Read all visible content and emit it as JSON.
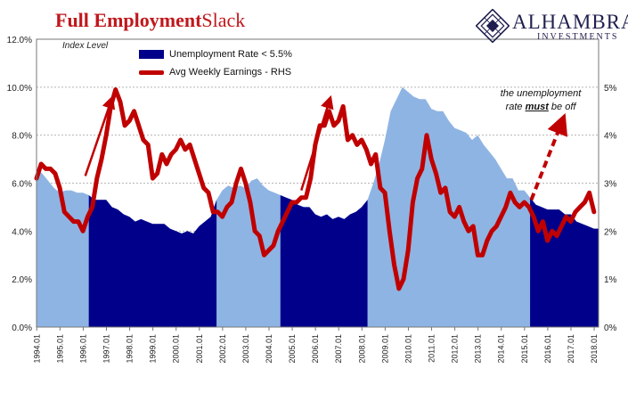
{
  "header": {
    "title_part1": "Full Employment",
    "title_part2": "Slack",
    "brand": "ALHAMBRA",
    "brand_sub": "INVESTMENTS",
    "index_label": "Index Level",
    "annotation_line1": "the unemployment",
    "annotation_line2_pre": "rate ",
    "annotation_line2_emph": "must",
    "annotation_line2_post": " be off"
  },
  "colors": {
    "title": "#c0171c",
    "unemployment_dark": "#00008b",
    "unemployment_light": "#8eb4e3",
    "earnings": "#c00000",
    "arrows": "#c00000"
  },
  "chart_data": {
    "type": "area",
    "x_tick_labels": [
      "1994.01",
      "1995.01",
      "1996.01",
      "1997.01",
      "1998.01",
      "1999.01",
      "2000.01",
      "2001.01",
      "2002.01",
      "2003.01",
      "2004.01",
      "2005.01",
      "2006.01",
      "2007.01",
      "2008.01",
      "2009.01",
      "2010.01",
      "2011.01",
      "2012.01",
      "2013.01",
      "2014.01",
      "2015.01",
      "2016.01",
      "2017.01",
      "2018.01"
    ],
    "x_range": [
      1994.0,
      2018.2
    ],
    "y_left_ticks": [
      "0.0%",
      "2.0%",
      "4.0%",
      "6.0%",
      "8.0%",
      "10.0%",
      "12.0%"
    ],
    "y_left_range": [
      0,
      12
    ],
    "y_right_ticks": [
      "0%",
      "1%",
      "2%",
      "3%",
      "4%",
      "5%"
    ],
    "y_right_range": [
      0,
      6
    ],
    "grid": "horizontal dashed",
    "legend": "top-left",
    "series": [
      {
        "name": "Unemployment Rate < 5.5%",
        "axis": "left",
        "unit": "%",
        "highlight_threshold": 5.5,
        "points": [
          [
            1994.0,
            6.6
          ],
          [
            1994.25,
            6.4
          ],
          [
            1994.5,
            6.1
          ],
          [
            1994.75,
            5.8
          ],
          [
            1995.0,
            5.6
          ],
          [
            1995.25,
            5.7
          ],
          [
            1995.5,
            5.7
          ],
          [
            1995.75,
            5.6
          ],
          [
            1996.0,
            5.6
          ],
          [
            1996.25,
            5.5
          ],
          [
            1996.5,
            5.3
          ],
          [
            1996.75,
            5.3
          ],
          [
            1997.0,
            5.3
          ],
          [
            1997.25,
            5.0
          ],
          [
            1997.5,
            4.9
          ],
          [
            1997.75,
            4.7
          ],
          [
            1998.0,
            4.6
          ],
          [
            1998.25,
            4.4
          ],
          [
            1998.5,
            4.5
          ],
          [
            1998.75,
            4.4
          ],
          [
            1999.0,
            4.3
          ],
          [
            1999.25,
            4.3
          ],
          [
            1999.5,
            4.3
          ],
          [
            1999.75,
            4.1
          ],
          [
            2000.0,
            4.0
          ],
          [
            2000.25,
            3.9
          ],
          [
            2000.5,
            4.0
          ],
          [
            2000.75,
            3.9
          ],
          [
            2001.0,
            4.2
          ],
          [
            2001.25,
            4.4
          ],
          [
            2001.5,
            4.6
          ],
          [
            2001.75,
            5.3
          ],
          [
            2002.0,
            5.7
          ],
          [
            2002.25,
            5.9
          ],
          [
            2002.5,
            5.8
          ],
          [
            2002.75,
            5.9
          ],
          [
            2003.0,
            5.8
          ],
          [
            2003.25,
            6.1
          ],
          [
            2003.5,
            6.2
          ],
          [
            2003.75,
            5.9
          ],
          [
            2004.0,
            5.7
          ],
          [
            2004.25,
            5.6
          ],
          [
            2004.5,
            5.5
          ],
          [
            2004.75,
            5.4
          ],
          [
            2005.0,
            5.3
          ],
          [
            2005.25,
            5.1
          ],
          [
            2005.5,
            5.0
          ],
          [
            2005.75,
            5.0
          ],
          [
            2006.0,
            4.7
          ],
          [
            2006.25,
            4.6
          ],
          [
            2006.5,
            4.7
          ],
          [
            2006.75,
            4.5
          ],
          [
            2007.0,
            4.6
          ],
          [
            2007.25,
            4.5
          ],
          [
            2007.5,
            4.7
          ],
          [
            2007.75,
            4.8
          ],
          [
            2008.0,
            5.0
          ],
          [
            2008.25,
            5.3
          ],
          [
            2008.5,
            6.0
          ],
          [
            2008.75,
            6.8
          ],
          [
            2009.0,
            7.8
          ],
          [
            2009.25,
            9.0
          ],
          [
            2009.5,
            9.5
          ],
          [
            2009.75,
            10.0
          ],
          [
            2010.0,
            9.8
          ],
          [
            2010.25,
            9.6
          ],
          [
            2010.5,
            9.5
          ],
          [
            2010.75,
            9.5
          ],
          [
            2011.0,
            9.1
          ],
          [
            2011.25,
            9.0
          ],
          [
            2011.5,
            9.0
          ],
          [
            2011.75,
            8.6
          ],
          [
            2012.0,
            8.3
          ],
          [
            2012.25,
            8.2
          ],
          [
            2012.5,
            8.1
          ],
          [
            2012.75,
            7.8
          ],
          [
            2013.0,
            8.0
          ],
          [
            2013.25,
            7.6
          ],
          [
            2013.5,
            7.3
          ],
          [
            2013.75,
            7.0
          ],
          [
            2014.0,
            6.6
          ],
          [
            2014.25,
            6.2
          ],
          [
            2014.5,
            6.2
          ],
          [
            2014.75,
            5.7
          ],
          [
            2015.0,
            5.7
          ],
          [
            2015.25,
            5.4
          ],
          [
            2015.5,
            5.1
          ],
          [
            2015.75,
            5.0
          ],
          [
            2016.0,
            4.9
          ],
          [
            2016.25,
            4.9
          ],
          [
            2016.5,
            4.9
          ],
          [
            2016.75,
            4.7
          ],
          [
            2017.0,
            4.7
          ],
          [
            2017.25,
            4.4
          ],
          [
            2017.5,
            4.3
          ],
          [
            2017.75,
            4.2
          ],
          [
            2018.0,
            4.1
          ],
          [
            2018.2,
            4.1
          ]
        ]
      },
      {
        "name": "Avg Weekly Earnings - RHS",
        "axis": "right",
        "unit": "%",
        "points": [
          [
            1994.0,
            3.1
          ],
          [
            1994.2,
            3.4
          ],
          [
            1994.4,
            3.3
          ],
          [
            1994.6,
            3.3
          ],
          [
            1994.8,
            3.2
          ],
          [
            1995.0,
            2.9
          ],
          [
            1995.2,
            2.4
          ],
          [
            1995.4,
            2.3
          ],
          [
            1995.6,
            2.2
          ],
          [
            1995.8,
            2.2
          ],
          [
            1996.0,
            2.0
          ],
          [
            1996.2,
            2.3
          ],
          [
            1996.4,
            2.5
          ],
          [
            1996.6,
            3.1
          ],
          [
            1996.8,
            3.5
          ],
          [
            1997.0,
            4.0
          ],
          [
            1997.2,
            4.6
          ],
          [
            1997.4,
            4.95
          ],
          [
            1997.6,
            4.7
          ],
          [
            1997.8,
            4.2
          ],
          [
            1998.0,
            4.3
          ],
          [
            1998.2,
            4.5
          ],
          [
            1998.4,
            4.2
          ],
          [
            1998.6,
            3.9
          ],
          [
            1998.8,
            3.8
          ],
          [
            1999.0,
            3.1
          ],
          [
            1999.2,
            3.2
          ],
          [
            1999.4,
            3.6
          ],
          [
            1999.6,
            3.4
          ],
          [
            1999.8,
            3.6
          ],
          [
            2000.0,
            3.7
          ],
          [
            2000.2,
            3.9
          ],
          [
            2000.4,
            3.7
          ],
          [
            2000.6,
            3.8
          ],
          [
            2000.8,
            3.5
          ],
          [
            2001.0,
            3.2
          ],
          [
            2001.2,
            2.9
          ],
          [
            2001.4,
            2.8
          ],
          [
            2001.6,
            2.4
          ],
          [
            2001.8,
            2.4
          ],
          [
            2002.0,
            2.3
          ],
          [
            2002.2,
            2.5
          ],
          [
            2002.4,
            2.6
          ],
          [
            2002.6,
            3.0
          ],
          [
            2002.8,
            3.3
          ],
          [
            2003.0,
            3.0
          ],
          [
            2003.2,
            2.6
          ],
          [
            2003.4,
            2.0
          ],
          [
            2003.6,
            1.9
          ],
          [
            2003.8,
            1.5
          ],
          [
            2004.0,
            1.6
          ],
          [
            2004.2,
            1.7
          ],
          [
            2004.4,
            2.0
          ],
          [
            2004.6,
            2.2
          ],
          [
            2004.8,
            2.4
          ],
          [
            2005.0,
            2.6
          ],
          [
            2005.2,
            2.6
          ],
          [
            2005.4,
            2.7
          ],
          [
            2005.6,
            2.7
          ],
          [
            2005.8,
            3.1
          ],
          [
            2006.0,
            3.8
          ],
          [
            2006.2,
            4.2
          ],
          [
            2006.4,
            4.2
          ],
          [
            2006.6,
            4.5
          ],
          [
            2006.8,
            4.2
          ],
          [
            2007.0,
            4.3
          ],
          [
            2007.2,
            4.6
          ],
          [
            2007.4,
            3.9
          ],
          [
            2007.6,
            4.0
          ],
          [
            2007.8,
            3.8
          ],
          [
            2008.0,
            3.9
          ],
          [
            2008.2,
            3.7
          ],
          [
            2008.4,
            3.4
          ],
          [
            2008.6,
            3.6
          ],
          [
            2008.8,
            2.9
          ],
          [
            2009.0,
            2.8
          ],
          [
            2009.2,
            2.0
          ],
          [
            2009.4,
            1.3
          ],
          [
            2009.6,
            0.8
          ],
          [
            2009.8,
            1.0
          ],
          [
            2010.0,
            1.6
          ],
          [
            2010.2,
            2.6
          ],
          [
            2010.4,
            3.1
          ],
          [
            2010.6,
            3.3
          ],
          [
            2010.8,
            4.0
          ],
          [
            2011.0,
            3.5
          ],
          [
            2011.2,
            3.2
          ],
          [
            2011.4,
            2.8
          ],
          [
            2011.6,
            2.9
          ],
          [
            2011.8,
            2.4
          ],
          [
            2012.0,
            2.3
          ],
          [
            2012.2,
            2.5
          ],
          [
            2012.4,
            2.2
          ],
          [
            2012.6,
            2.0
          ],
          [
            2012.8,
            2.1
          ],
          [
            2013.0,
            1.5
          ],
          [
            2013.2,
            1.5
          ],
          [
            2013.4,
            1.8
          ],
          [
            2013.6,
            2.0
          ],
          [
            2013.8,
            2.1
          ],
          [
            2014.0,
            2.3
          ],
          [
            2014.2,
            2.5
          ],
          [
            2014.4,
            2.8
          ],
          [
            2014.6,
            2.6
          ],
          [
            2014.8,
            2.5
          ],
          [
            2015.0,
            2.6
          ],
          [
            2015.2,
            2.5
          ],
          [
            2015.4,
            2.3
          ],
          [
            2015.6,
            2.0
          ],
          [
            2015.8,
            2.2
          ],
          [
            2016.0,
            1.8
          ],
          [
            2016.2,
            2.0
          ],
          [
            2016.4,
            1.9
          ],
          [
            2016.6,
            2.1
          ],
          [
            2016.8,
            2.3
          ],
          [
            2017.0,
            2.2
          ],
          [
            2017.2,
            2.4
          ],
          [
            2017.4,
            2.5
          ],
          [
            2017.6,
            2.6
          ],
          [
            2017.8,
            2.8
          ],
          [
            2018.0,
            2.4
          ]
        ]
      }
    ]
  }
}
